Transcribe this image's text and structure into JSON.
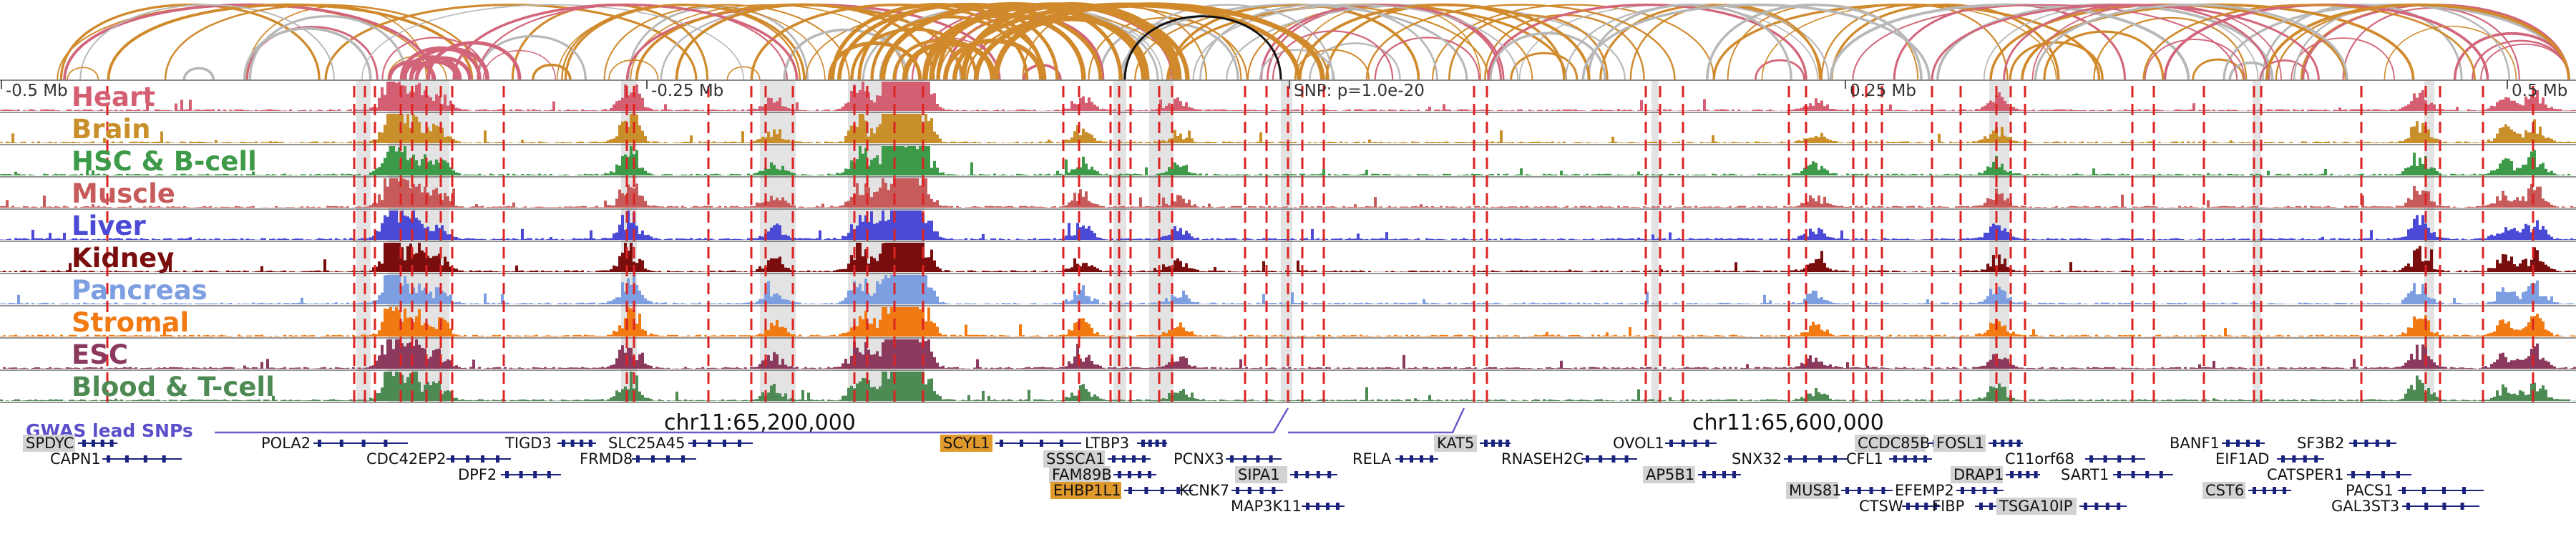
{
  "region": {
    "scale_ticks": [
      "-0.5 Mb",
      "-0.25 Mb",
      "SNP: p=1.0e-20",
      "0.25 Mb",
      "0.5 Mb"
    ],
    "coordinates": [
      "chr11:65,200,000",
      "chr11:65,600,000"
    ]
  },
  "tracks": [
    {
      "name": "Heart",
      "color": "#d45f72"
    },
    {
      "name": "Brain",
      "color": "#c98f2a"
    },
    {
      "name": "HSC & B-cell",
      "color": "#3d9a48"
    },
    {
      "name": "Muscle",
      "color": "#c75b5b"
    },
    {
      "name": "Liver",
      "color": "#4a4ad6"
    },
    {
      "name": "Kidney",
      "color": "#7a0e0e"
    },
    {
      "name": "Pancreas",
      "color": "#7d9ee0"
    },
    {
      "name": "Stromal",
      "color": "#f27a12"
    },
    {
      "name": "ESC",
      "color": "#8b3a5e"
    },
    {
      "name": "Blood & T-cell",
      "color": "#4e8a54"
    }
  ],
  "gwas": {
    "label": "GWAS lead SNPs",
    "color": "#6a5acd"
  },
  "colors": {
    "loop_orange": "#d08a2c",
    "loop_red": "#d2657a",
    "loop_grey": "#b8b8b8",
    "loop_black": "#111111",
    "snp_line": "#dd2222",
    "highlight_band": "#d9d9d9",
    "gene_body": "#1a237e",
    "gene_box": "#d2d2d2",
    "gene_box_highlight": "#e09a2c"
  },
  "genes": [
    {
      "name": "SPDYC",
      "box": true
    },
    {
      "name": "CAPN1"
    },
    {
      "name": "POLA2"
    },
    {
      "name": "CDC42EP2"
    },
    {
      "name": "DPF2"
    },
    {
      "name": "TIGD3"
    },
    {
      "name": "SLC25A45"
    },
    {
      "name": "FRMD8"
    },
    {
      "name": "SCYL1",
      "highlight": true
    },
    {
      "name": "LTBP3"
    },
    {
      "name": "SSSCA1",
      "box": true
    },
    {
      "name": "FAM89B",
      "box": true
    },
    {
      "name": "EHBP1L1",
      "highlight": true
    },
    {
      "name": "KCNK7"
    },
    {
      "name": "MAP3K11"
    },
    {
      "name": "PCNX3"
    },
    {
      "name": "SIPA1",
      "box": true
    },
    {
      "name": "RELA"
    },
    {
      "name": "KAT5",
      "box": true
    },
    {
      "name": "RNASEH2C"
    },
    {
      "name": "OVOL1"
    },
    {
      "name": "AP5B1",
      "box": true
    },
    {
      "name": "SNX32"
    },
    {
      "name": "CCDC85B",
      "box": true
    },
    {
      "name": "FOSL1",
      "box": true
    },
    {
      "name": "CFL1"
    },
    {
      "name": "MUS81",
      "box": true
    },
    {
      "name": "EFEMP2"
    },
    {
      "name": "CTSW"
    },
    {
      "name": "FIBP"
    },
    {
      "name": "DRAP1",
      "box": true
    },
    {
      "name": "C11orf68"
    },
    {
      "name": "TSGA10IP",
      "box": true
    },
    {
      "name": "SART1"
    },
    {
      "name": "BANF1"
    },
    {
      "name": "EIF1AD"
    },
    {
      "name": "CST6",
      "box": true
    },
    {
      "name": "CATSPER1"
    },
    {
      "name": "SF3B2"
    },
    {
      "name": "PACS1"
    },
    {
      "name": "GAL3ST3"
    }
  ]
}
